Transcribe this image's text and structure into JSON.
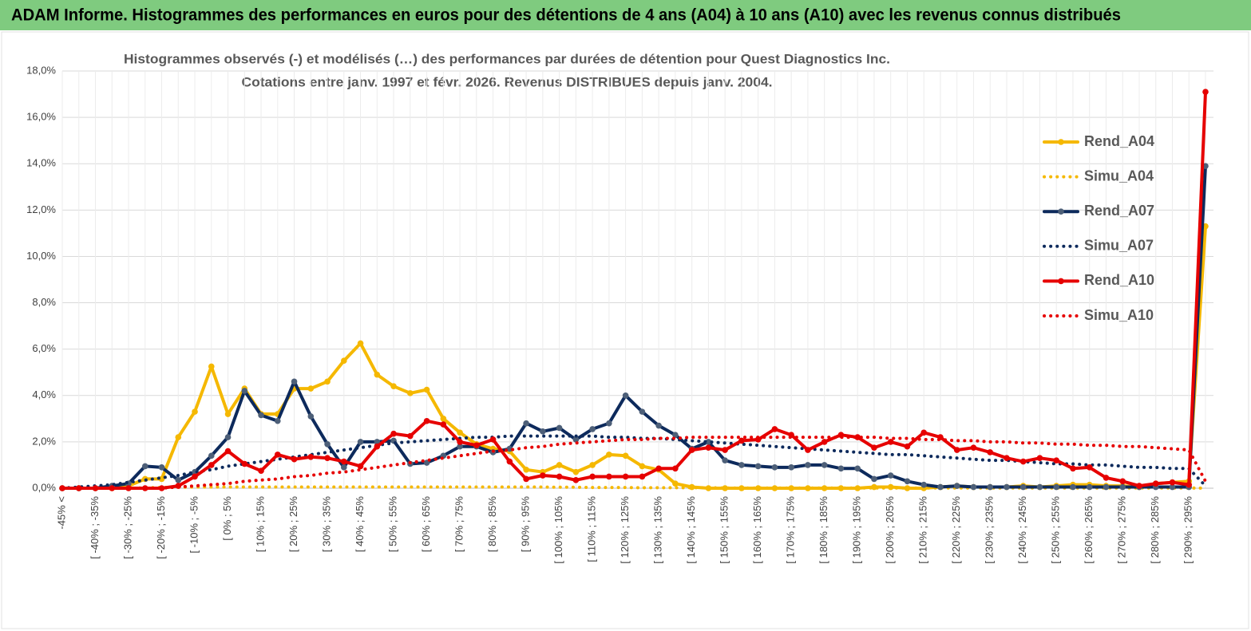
{
  "title": "ADAM Informe. Histogrammes des performances en euros pour des détentions de 4 ans (A04) à 10 ans (A10) avec les revenus connus distribués",
  "chart_data": {
    "type": "line",
    "title": "Histogrammes observés (-) et modélisés (…) des performances par durées de détention pour Quest Diagnostics Inc.",
    "subtitle": "Cotations entre janv. 1997 et févr. 2026. Revenus DISTRIBUES depuis janv. 2004.",
    "categories": [
      "-45% <",
      null,
      "[ -40% ; -35%",
      null,
      "[ -30% ; -25%",
      null,
      "[ -20% ; -15%",
      null,
      "[ -10% ; -5%",
      null,
      "[ 0% ; 5%",
      null,
      "[ 10% ; 15%",
      null,
      "[ 20% ; 25%",
      null,
      "[ 30% ; 35%",
      null,
      "[ 40% ; 45%",
      null,
      "[ 50% ; 55%",
      null,
      "[ 60% ; 65%",
      null,
      "[ 70% ; 75%",
      null,
      "[ 80% ; 85%",
      null,
      "[ 90% ; 95%",
      null,
      "[ 100% ; 105%",
      null,
      "[ 110% ; 115%",
      null,
      "[ 120% ; 125%",
      null,
      "[ 130% ; 135%",
      null,
      "[ 140% ; 145%",
      null,
      "[ 150% ; 155%",
      null,
      "[ 160% ; 165%",
      null,
      "[ 170% ; 175%",
      null,
      "[ 180% ; 185%",
      null,
      "[ 190% ; 195%",
      null,
      "[ 200% ; 205%",
      null,
      "[ 210% ; 215%",
      null,
      "[ 220% ; 225%",
      null,
      "[ 230% ; 235%",
      null,
      "[ 240% ; 245%",
      null,
      "[ 250% ; 255%",
      null,
      "[ 260% ; 265%",
      null,
      "[ 270% ; 275%",
      null,
      "[ 280% ; 285%",
      null,
      "[ 290% ; 295%",
      null
    ],
    "series": [
      {
        "name": "Rend_A04",
        "color": "#f5b800",
        "dashed": false,
        "marker": true,
        "values": [
          0,
          0,
          0,
          0,
          0.1,
          0.4,
          0.4,
          2.2,
          3.3,
          5.25,
          3.2,
          4.3,
          3.2,
          3.2,
          4.3,
          4.3,
          4.6,
          5.5,
          6.25,
          4.9,
          4.4,
          4.1,
          4.25,
          3.0,
          2.4,
          1.9,
          1.7,
          1.6,
          0.8,
          0.7,
          1.0,
          0.7,
          1.0,
          1.45,
          1.4,
          0.95,
          0.8,
          0.2,
          0.05,
          0,
          0,
          0,
          0,
          0,
          0,
          0,
          0,
          0,
          0,
          0.05,
          0.05,
          0,
          0,
          0.05,
          0.1,
          0.05,
          0.05,
          0.05,
          0.1,
          0.05,
          0.1,
          0.15,
          0.15,
          0.1,
          0.1,
          0.05,
          0.2,
          0.25,
          0.3,
          11.3
        ]
      },
      {
        "name": "Simu_A04",
        "color": "#f5b800",
        "dashed": true,
        "marker": false,
        "values": [
          0,
          0,
          0,
          0,
          0,
          0.02,
          0.03,
          0.04,
          0.05,
          0.05,
          0.05,
          0.05,
          0.05,
          0.05,
          0.05,
          0.05,
          0.05,
          0.05,
          0.05,
          0.05,
          0.05,
          0.05,
          0.05,
          0.05,
          0.05,
          0.05,
          0.05,
          0.05,
          0.05,
          0.05,
          0.04,
          0.04,
          0.03,
          0.03,
          0.03,
          0.02,
          0.02,
          0.02,
          0.02,
          0.02,
          0.01,
          0.01,
          0.01,
          0.01,
          0.01,
          0.01,
          0.01,
          0.01,
          0.01,
          0.01,
          0.01,
          0.01,
          0.01,
          0.01,
          0.01,
          0.01,
          0.01,
          0.01,
          0.01,
          0.01,
          0.01,
          0.01,
          0.01,
          0.01,
          0.01,
          0.01,
          0.01,
          0.01,
          0.01,
          0
        ]
      },
      {
        "name": "Rend_A07",
        "color": "#0d2a5c",
        "dashed": false,
        "marker": true,
        "values": [
          0,
          0,
          0,
          0.1,
          0.2,
          0.95,
          0.9,
          0.35,
          0.7,
          1.4,
          2.2,
          4.2,
          3.15,
          2.9,
          4.6,
          3.1,
          1.9,
          0.9,
          2.0,
          2.0,
          2.05,
          1.05,
          1.1,
          1.4,
          1.8,
          1.8,
          1.55,
          1.7,
          2.8,
          2.45,
          2.6,
          2.1,
          2.55,
          2.8,
          4.0,
          3.3,
          2.7,
          2.3,
          1.7,
          2.0,
          1.2,
          1.0,
          0.95,
          0.9,
          0.9,
          1.0,
          1.0,
          0.85,
          0.85,
          0.4,
          0.55,
          0.3,
          0.15,
          0.05,
          0.1,
          0.05,
          0.05,
          0.05,
          0.05,
          0.05,
          0.05,
          0.05,
          0.05,
          0.05,
          0.05,
          0.05,
          0.05,
          0.05,
          0.05,
          13.9
        ]
      },
      {
        "name": "Simu_A07",
        "color": "#0d2a5c",
        "dashed": true,
        "marker": false,
        "values": [
          0,
          0.05,
          0.1,
          0.15,
          0.25,
          0.35,
          0.45,
          0.55,
          0.7,
          0.8,
          0.95,
          1.05,
          1.15,
          1.25,
          1.35,
          1.45,
          1.55,
          1.65,
          1.75,
          1.85,
          1.95,
          2.0,
          2.05,
          2.1,
          2.15,
          2.2,
          2.2,
          2.25,
          2.25,
          2.25,
          2.25,
          2.25,
          2.25,
          2.2,
          2.2,
          2.15,
          2.15,
          2.1,
          2.05,
          2.0,
          1.95,
          1.9,
          1.85,
          1.8,
          1.75,
          1.7,
          1.65,
          1.6,
          1.55,
          1.5,
          1.45,
          1.45,
          1.4,
          1.35,
          1.3,
          1.25,
          1.2,
          1.2,
          1.15,
          1.1,
          1.05,
          1.05,
          1.0,
          1.0,
          0.95,
          0.9,
          0.9,
          0.85,
          0.85,
          0.1
        ]
      },
      {
        "name": "Rend_A10",
        "color": "#e60000",
        "dashed": false,
        "marker": true,
        "values": [
          0,
          0,
          0,
          0,
          0,
          0,
          0,
          0.1,
          0.5,
          1.0,
          1.6,
          1.05,
          0.75,
          1.45,
          1.25,
          1.35,
          1.3,
          1.15,
          0.95,
          1.8,
          2.35,
          2.25,
          2.9,
          2.75,
          2.0,
          1.85,
          2.1,
          1.15,
          0.4,
          0.55,
          0.5,
          0.35,
          0.5,
          0.5,
          0.5,
          0.5,
          0.85,
          0.85,
          1.65,
          1.75,
          1.65,
          2.05,
          2.1,
          2.55,
          2.3,
          1.65,
          2.0,
          2.3,
          2.2,
          1.75,
          2.0,
          1.8,
          2.4,
          2.2,
          1.65,
          1.75,
          1.55,
          1.3,
          1.15,
          1.3,
          1.2,
          0.85,
          0.9,
          0.45,
          0.3,
          0.1,
          0.2,
          0.25,
          0.15,
          17.1
        ]
      },
      {
        "name": "Simu_A10",
        "color": "#e60000",
        "dashed": true,
        "marker": false,
        "values": [
          0,
          0,
          0,
          0,
          0,
          0,
          0,
          0.05,
          0.1,
          0.15,
          0.2,
          0.3,
          0.35,
          0.4,
          0.5,
          0.55,
          0.65,
          0.7,
          0.8,
          0.9,
          1.0,
          1.1,
          1.2,
          1.3,
          1.4,
          1.5,
          1.6,
          1.65,
          1.75,
          1.8,
          1.9,
          1.95,
          2.0,
          2.05,
          2.1,
          2.1,
          2.15,
          2.15,
          2.2,
          2.2,
          2.2,
          2.2,
          2.2,
          2.2,
          2.2,
          2.2,
          2.2,
          2.2,
          2.2,
          2.2,
          2.15,
          2.15,
          2.1,
          2.1,
          2.05,
          2.05,
          2.0,
          2.0,
          1.95,
          1.95,
          1.9,
          1.9,
          1.85,
          1.85,
          1.8,
          1.8,
          1.75,
          1.7,
          1.65,
          0.3
        ]
      }
    ],
    "ylim": [
      0,
      18
    ],
    "yticks": [
      {
        "value": 0,
        "label": "0,0%"
      },
      {
        "value": 2,
        "label": "2,0%"
      },
      {
        "value": 4,
        "label": "4,0%"
      },
      {
        "value": 6,
        "label": "6,0%"
      },
      {
        "value": 8,
        "label": "8,0%"
      },
      {
        "value": 10,
        "label": "10,0%"
      },
      {
        "value": 12,
        "label": "12,0%"
      },
      {
        "value": 14,
        "label": "14,0%"
      },
      {
        "value": 16,
        "label": "16,0%"
      },
      {
        "value": 18,
        "label": "18,0%"
      }
    ],
    "grid": true,
    "legend": "right"
  }
}
